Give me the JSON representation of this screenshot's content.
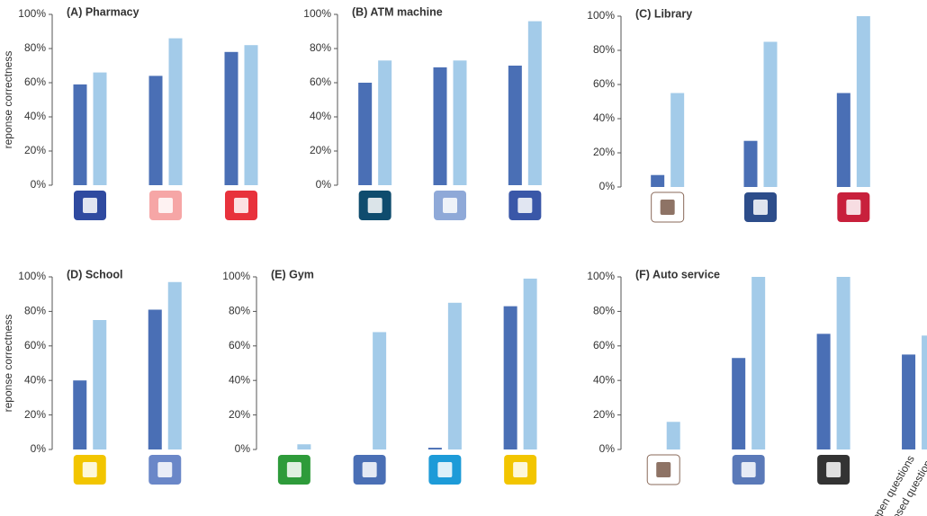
{
  "chart_data": [
    {
      "type": "bar",
      "title": "(A) Pharmacy",
      "ylabel": "reponse correctness",
      "categories": [
        null,
        null,
        null
      ],
      "series": [
        {
          "color": "#4a6fb5",
          "values": [
            59,
            64,
            78
          ]
        },
        {
          "color": "#a3cbe9",
          "values": [
            66,
            86,
            82
          ]
        }
      ],
      "ylim": [
        0,
        100
      ],
      "yticks": [
        {
          "value": 0,
          "label": "0%"
        },
        {
          "value": 20,
          "label": "20%"
        },
        {
          "value": 40,
          "label": "40%"
        },
        {
          "value": 60,
          "label": "60%"
        },
        {
          "value": 80,
          "label": "80%"
        },
        {
          "value": 100,
          "label": "100%"
        }
      ]
    },
    {
      "type": "bar",
      "title": "(B) ATM machine",
      "categories": [
        null,
        null,
        null
      ],
      "series": [
        {
          "color": "#4a6fb5",
          "values": [
            60,
            69,
            70
          ]
        },
        {
          "color": "#a3cbe9",
          "values": [
            73,
            73,
            96
          ]
        }
      ],
      "ylim": [
        0,
        100
      ],
      "yticks": [
        {
          "value": 0,
          "label": "0%"
        },
        {
          "value": 20,
          "label": "20%"
        },
        {
          "value": 40,
          "label": "40%"
        },
        {
          "value": 60,
          "label": "60%"
        },
        {
          "value": 80,
          "label": "80%"
        },
        {
          "value": 100,
          "label": "100%"
        }
      ]
    },
    {
      "type": "bar",
      "title": "(C) Library",
      "categories": [
        null,
        null,
        null
      ],
      "series": [
        {
          "color": "#4a6fb5",
          "values": [
            7,
            27,
            55
          ]
        },
        {
          "color": "#a3cbe9",
          "values": [
            55,
            85,
            100
          ]
        }
      ],
      "ylim": [
        0,
        100
      ],
      "yticks": [
        {
          "value": 0,
          "label": "0%"
        },
        {
          "value": 20,
          "label": "20%"
        },
        {
          "value": 40,
          "label": "40%"
        },
        {
          "value": 60,
          "label": "60%"
        },
        {
          "value": 80,
          "label": "80%"
        },
        {
          "value": 100,
          "label": "100%"
        }
      ]
    },
    {
      "type": "bar",
      "title": "(D) School",
      "ylabel": "reponse correctness",
      "categories": [
        null,
        null
      ],
      "series": [
        {
          "color": "#4a6fb5",
          "values": [
            40,
            81
          ]
        },
        {
          "color": "#a3cbe9",
          "values": [
            75,
            97
          ]
        }
      ],
      "ylim": [
        0,
        100
      ],
      "yticks": [
        {
          "value": 0,
          "label": "0%"
        },
        {
          "value": 20,
          "label": "20%"
        },
        {
          "value": 40,
          "label": "40%"
        },
        {
          "value": 60,
          "label": "60%"
        },
        {
          "value": 80,
          "label": "80%"
        },
        {
          "value": 100,
          "label": "100%"
        }
      ]
    },
    {
      "type": "bar",
      "title": "(E) Gym",
      "categories": [
        null,
        null,
        null,
        null
      ],
      "series": [
        {
          "color": "#4a6fb5",
          "values": [
            0,
            0,
            1,
            83
          ]
        },
        {
          "color": "#a3cbe9",
          "values": [
            3,
            68,
            85,
            99
          ]
        }
      ],
      "ylim": [
        0,
        100
      ],
      "yticks": [
        {
          "value": 0,
          "label": "0%"
        },
        {
          "value": 20,
          "label": "20%"
        },
        {
          "value": 40,
          "label": "40%"
        },
        {
          "value": 60,
          "label": "60%"
        },
        {
          "value": 80,
          "label": "80%"
        },
        {
          "value": 100,
          "label": "100%"
        }
      ]
    },
    {
      "type": "bar",
      "title": "(F) Auto service",
      "categories": [
        null,
        null,
        null,
        null
      ],
      "series": [
        {
          "name": "open questions",
          "color": "#4a6fb5",
          "values": [
            0,
            53,
            67,
            55
          ]
        },
        {
          "name": "closed questions",
          "color": "#a3cbe9",
          "values": [
            16,
            100,
            100,
            66
          ]
        }
      ],
      "ylim": [
        0,
        100
      ],
      "yticks": [
        {
          "value": 0,
          "label": "0%"
        },
        {
          "value": 20,
          "label": "20%"
        },
        {
          "value": 40,
          "label": "40%"
        },
        {
          "value": 60,
          "label": "60%"
        },
        {
          "value": 80,
          "label": "80%"
        },
        {
          "value": 100,
          "label": "100%"
        }
      ]
    }
  ]
}
